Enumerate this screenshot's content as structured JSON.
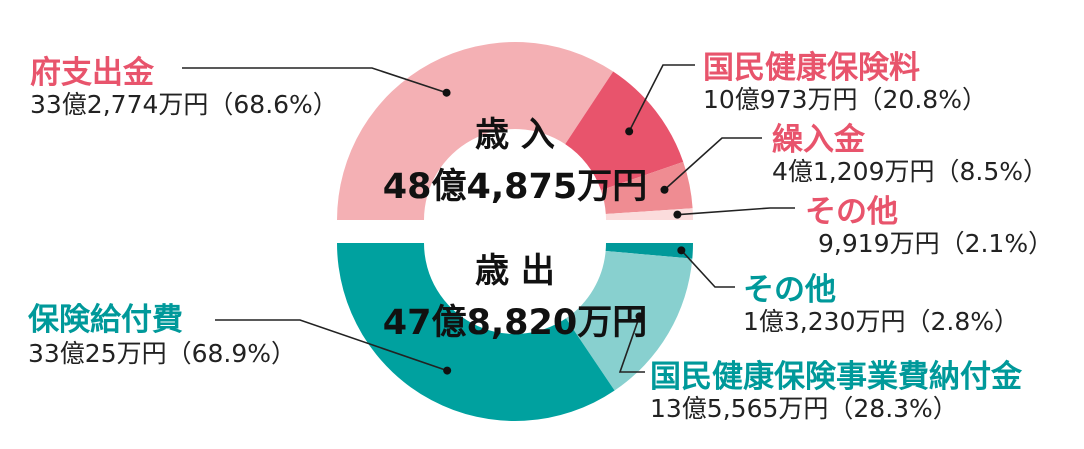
{
  "chart_data": [
    {
      "type": "pie",
      "title": "歳 入",
      "total": "48億4,875万円",
      "colors": {
        "label": "#e8546c"
      },
      "slices": [
        {
          "name": "府支出金",
          "value_text": "33億2,774万円（68.6%）",
          "percent": 68.6,
          "color": "#f4b0b4"
        },
        {
          "name": "国民健康保険料",
          "value_text": "10億973万円（20.8%）",
          "percent": 20.8,
          "color": "#e8546c"
        },
        {
          "name": "繰入金",
          "value_text": "4億1,209万円（8.5%）",
          "percent": 8.5,
          "color": "#ef8c92"
        },
        {
          "name": "その他",
          "value_text": "9,919万円（2.1%）",
          "percent": 2.1,
          "color": "#fbdcdc"
        }
      ]
    },
    {
      "type": "pie",
      "title": "歳 出",
      "total": "47億8,820万円",
      "colors": {
        "label": "#00999a"
      },
      "slices": [
        {
          "name": "保険給付費",
          "value_text": "33億25万円（68.9%）",
          "percent": 68.9,
          "color": "#00a19f"
        },
        {
          "name": "国民健康保険事業費納付金",
          "value_text": "13億5,565万円（28.3%）",
          "percent": 28.3,
          "color": "#88d0cf"
        },
        {
          "name": "その他",
          "value_text": "1億3,230万円（2.8%）",
          "percent": 2.8,
          "color": "#00999a"
        }
      ]
    }
  ]
}
